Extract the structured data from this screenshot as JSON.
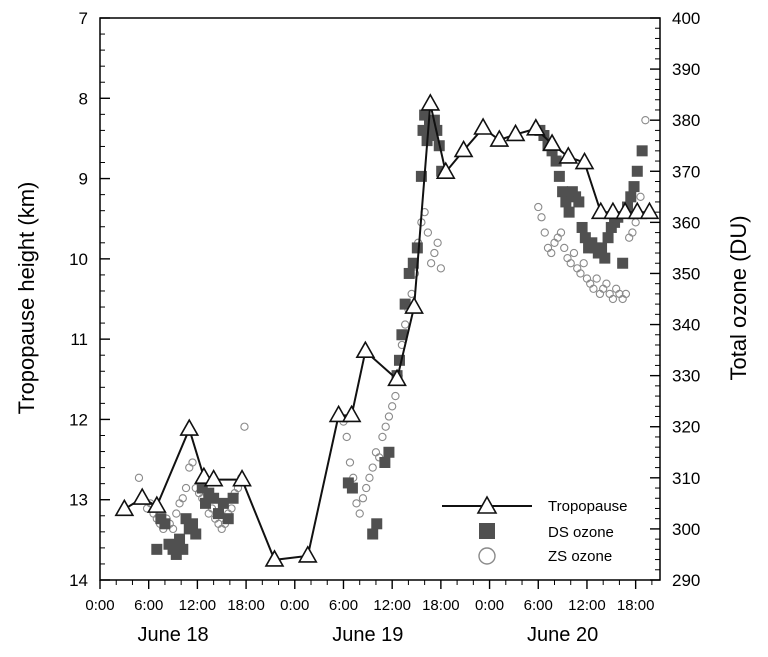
{
  "chart_data": {
    "type": "line",
    "ylabel": "Tropopause height (km)",
    "y2label": "Total ozone (DU)",
    "y_ticks": [
      "7",
      "8",
      "9",
      "10",
      "11",
      "12",
      "13",
      "14"
    ],
    "y_range": [
      7,
      14
    ],
    "y_inverted": true,
    "y2_ticks": [
      "290",
      "300",
      "310",
      "320",
      "330",
      "340",
      "350",
      "360",
      "370",
      "380",
      "390",
      "400"
    ],
    "y2_range": [
      290,
      400
    ],
    "x_unit": "hours since June 18 0:00",
    "x_range": [
      0,
      69
    ],
    "x_ticks": [
      {
        "x": 0,
        "label": "0:00"
      },
      {
        "x": 6,
        "label": "6:00"
      },
      {
        "x": 12,
        "label": "12:00"
      },
      {
        "x": 18,
        "label": "18:00"
      },
      {
        "x": 24,
        "label": "0:00"
      },
      {
        "x": 30,
        "label": "6:00"
      },
      {
        "x": 36,
        "label": "12:00"
      },
      {
        "x": 42,
        "label": "18:00"
      },
      {
        "x": 48,
        "label": "0:00"
      },
      {
        "x": 54,
        "label": "6:00"
      },
      {
        "x": 60,
        "label": "12:00"
      },
      {
        "x": 66,
        "label": "18:00"
      }
    ],
    "day_labels": [
      {
        "x": 9,
        "label": "June 18"
      },
      {
        "x": 33,
        "label": "June 19"
      },
      {
        "x": 57,
        "label": "June 20"
      }
    ],
    "legend": {
      "position": "bottom-right",
      "entries": [
        {
          "key": "tropopause",
          "label": "Tropopause"
        },
        {
          "key": "ds",
          "label": "DS ozone"
        },
        {
          "key": "zs",
          "label": "ZS ozone"
        }
      ]
    },
    "series": [
      {
        "name": "Tropopause",
        "axis": "left",
        "marker": "triangle",
        "points": [
          [
            3,
            13.12
          ],
          [
            5.2,
            12.98
          ],
          [
            7,
            13.08
          ],
          [
            11,
            12.12
          ],
          [
            12.8,
            12.72
          ],
          [
            14,
            12.75
          ],
          [
            17.5,
            12.75
          ],
          [
            21.5,
            13.75
          ],
          [
            25.6,
            13.7
          ],
          [
            29.4,
            11.95
          ],
          [
            31,
            11.95
          ],
          [
            32.7,
            11.15
          ],
          [
            36.6,
            11.5
          ],
          [
            38.7,
            10.6
          ],
          [
            40.7,
            8.07
          ],
          [
            42.6,
            8.92
          ],
          [
            44.8,
            8.65
          ],
          [
            47.2,
            8.37
          ],
          [
            49.2,
            8.52
          ],
          [
            51.2,
            8.45
          ],
          [
            53.7,
            8.38
          ],
          [
            55.7,
            8.57
          ],
          [
            57.7,
            8.73
          ],
          [
            59.7,
            8.8
          ],
          [
            61.7,
            9.42
          ],
          [
            63.2,
            9.42
          ],
          [
            64.7,
            9.42
          ],
          [
            66.2,
            9.42
          ],
          [
            67.7,
            9.42
          ]
        ]
      },
      {
        "name": "DS ozone",
        "axis": "right",
        "marker": "square",
        "points": [
          [
            7,
            296
          ],
          [
            7.5,
            302
          ],
          [
            8,
            301
          ],
          [
            8.5,
            297
          ],
          [
            9,
            296
          ],
          [
            9.4,
            295
          ],
          [
            9.8,
            298
          ],
          [
            10.2,
            296
          ],
          [
            10.6,
            302
          ],
          [
            11,
            300
          ],
          [
            11.4,
            301
          ],
          [
            11.8,
            299
          ],
          [
            12.6,
            308
          ],
          [
            13,
            305
          ],
          [
            13.4,
            307
          ],
          [
            14,
            306
          ],
          [
            14.6,
            303
          ],
          [
            15.2,
            305
          ],
          [
            15.8,
            302
          ],
          [
            16.4,
            306
          ],
          [
            30.6,
            309
          ],
          [
            31.1,
            308
          ],
          [
            33.6,
            299
          ],
          [
            34.1,
            301
          ],
          [
            35.1,
            313
          ],
          [
            35.6,
            315
          ],
          [
            36.6,
            330
          ],
          [
            36.9,
            333
          ],
          [
            37.2,
            338
          ],
          [
            37.6,
            344
          ],
          [
            38.1,
            350
          ],
          [
            38.6,
            352
          ],
          [
            39.1,
            355
          ],
          [
            39.6,
            369
          ],
          [
            39.8,
            378
          ],
          [
            40,
            381
          ],
          [
            40.3,
            376
          ],
          [
            40.6,
            379
          ],
          [
            40.9,
            377
          ],
          [
            41.2,
            380
          ],
          [
            41.5,
            378
          ],
          [
            41.8,
            375
          ],
          [
            42.1,
            370
          ],
          [
            54.2,
            378
          ],
          [
            54.7,
            377
          ],
          [
            55.2,
            375
          ],
          [
            55.7,
            374
          ],
          [
            56.2,
            372
          ],
          [
            56.6,
            369
          ],
          [
            57,
            366
          ],
          [
            57.4,
            364
          ],
          [
            57.8,
            362
          ],
          [
            58.2,
            366
          ],
          [
            58.6,
            365
          ],
          [
            59,
            364
          ],
          [
            59.4,
            359
          ],
          [
            59.8,
            357
          ],
          [
            60.2,
            355
          ],
          [
            60.6,
            356
          ],
          [
            61,
            355
          ],
          [
            61.4,
            354
          ],
          [
            61.8,
            355
          ],
          [
            62.2,
            353
          ],
          [
            62.6,
            357
          ],
          [
            63,
            359
          ],
          [
            63.4,
            360
          ],
          [
            63.8,
            361
          ],
          [
            64.4,
            352
          ],
          [
            65,
            363
          ],
          [
            65.4,
            365
          ],
          [
            65.8,
            367
          ],
          [
            66.2,
            370
          ],
          [
            66.8,
            374
          ]
        ]
      },
      {
        "name": "ZS ozone",
        "axis": "right",
        "marker": "circle",
        "points": [
          [
            4.8,
            310
          ],
          [
            5.3,
            306
          ],
          [
            5.8,
            304
          ],
          [
            6.2,
            305
          ],
          [
            6.6,
            303
          ],
          [
            7,
            302
          ],
          [
            7.4,
            301
          ],
          [
            7.8,
            300
          ],
          [
            8.2,
            302
          ],
          [
            8.6,
            301
          ],
          [
            9,
            300
          ],
          [
            9.4,
            303
          ],
          [
            9.8,
            305
          ],
          [
            10.2,
            306
          ],
          [
            10.6,
            308
          ],
          [
            11,
            312
          ],
          [
            11.4,
            313
          ],
          [
            11.8,
            308
          ],
          [
            12.2,
            307
          ],
          [
            12.6,
            306
          ],
          [
            13,
            305
          ],
          [
            13.4,
            303
          ],
          [
            13.8,
            304
          ],
          [
            14.2,
            302
          ],
          [
            14.6,
            301
          ],
          [
            15,
            300
          ],
          [
            15.4,
            301
          ],
          [
            15.8,
            303
          ],
          [
            16.2,
            304
          ],
          [
            16.6,
            307
          ],
          [
            17,
            308
          ],
          [
            17.4,
            310
          ],
          [
            17.8,
            320
          ],
          [
            30,
            321
          ],
          [
            30.4,
            318
          ],
          [
            30.8,
            313
          ],
          [
            31.2,
            310
          ],
          [
            31.6,
            305
          ],
          [
            32,
            303
          ],
          [
            32.4,
            306
          ],
          [
            32.8,
            308
          ],
          [
            33.2,
            310
          ],
          [
            33.6,
            312
          ],
          [
            34,
            315
          ],
          [
            34.4,
            314
          ],
          [
            34.8,
            318
          ],
          [
            35.2,
            320
          ],
          [
            35.6,
            322
          ],
          [
            36,
            324
          ],
          [
            36.4,
            326
          ],
          [
            36.8,
            330
          ],
          [
            37.2,
            336
          ],
          [
            37.6,
            340
          ],
          [
            38,
            343
          ],
          [
            38.4,
            346
          ],
          [
            38.8,
            350
          ],
          [
            39.2,
            356
          ],
          [
            39.6,
            360
          ],
          [
            40,
            362
          ],
          [
            40.4,
            358
          ],
          [
            40.8,
            352
          ],
          [
            41.2,
            354
          ],
          [
            41.6,
            356
          ],
          [
            42,
            351
          ],
          [
            54,
            363
          ],
          [
            54.4,
            361
          ],
          [
            54.8,
            358
          ],
          [
            55.2,
            355
          ],
          [
            55.6,
            354
          ],
          [
            56,
            356
          ],
          [
            56.4,
            357
          ],
          [
            56.8,
            358
          ],
          [
            57.2,
            355
          ],
          [
            57.6,
            353
          ],
          [
            58,
            352
          ],
          [
            58.4,
            354
          ],
          [
            58.8,
            351
          ],
          [
            59.2,
            350
          ],
          [
            59.6,
            352
          ],
          [
            60,
            349
          ],
          [
            60.4,
            348
          ],
          [
            60.8,
            347
          ],
          [
            61.2,
            349
          ],
          [
            61.6,
            346
          ],
          [
            62,
            347
          ],
          [
            62.4,
            348
          ],
          [
            62.8,
            346
          ],
          [
            63.2,
            345
          ],
          [
            63.6,
            347
          ],
          [
            64,
            346
          ],
          [
            64.4,
            345
          ],
          [
            64.8,
            346
          ],
          [
            65.2,
            357
          ],
          [
            65.6,
            358
          ],
          [
            66,
            360
          ],
          [
            66.6,
            365
          ],
          [
            67.2,
            380
          ]
        ]
      }
    ]
  },
  "colors": {
    "tropopause": "#111111",
    "ds": "#505050",
    "zs": "#8a8a8a",
    "axis": "#000000"
  }
}
